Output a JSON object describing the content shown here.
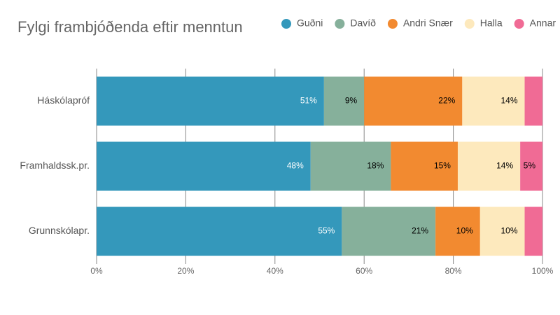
{
  "chart_data": {
    "type": "stacked-barh",
    "title": "Fylgi frambjóðenda eftir menntun",
    "categories": [
      "Háskólapróf",
      "Framhaldssk.pr.",
      "Grunnskólapr."
    ],
    "series": [
      {
        "name": "Guðni",
        "color": "#3498bb",
        "values": [
          51,
          48,
          55
        ],
        "value_labels": [
          "51%",
          "48%",
          "55%"
        ]
      },
      {
        "name": "Davíð",
        "color": "#86b09b",
        "values": [
          9,
          18,
          21
        ],
        "value_labels": [
          "9%",
          "18%",
          "21%"
        ]
      },
      {
        "name": "Andri Snær",
        "color": "#f28a30",
        "values": [
          22,
          15,
          10
        ],
        "value_labels": [
          "22%",
          "15%",
          "10%"
        ]
      },
      {
        "name": "Halla",
        "color": "#fde9bd",
        "values": [
          14,
          14,
          10
        ],
        "value_labels": [
          "14%",
          "14%",
          "10%"
        ]
      },
      {
        "name": "Annar",
        "color": "#f06b95",
        "values": [
          4,
          5,
          4
        ],
        "value_labels": [
          null,
          "5%",
          null
        ]
      }
    ],
    "xlim": [
      0,
      100
    ],
    "xticks": [
      {
        "value": 0,
        "label": "0%"
      },
      {
        "value": 20,
        "label": "20%"
      },
      {
        "value": 40,
        "label": "40%"
      },
      {
        "value": 60,
        "label": "60%"
      },
      {
        "value": 80,
        "label": "80%"
      },
      {
        "value": 100,
        "label": "100%"
      }
    ],
    "grid": true,
    "legend": "top-right"
  }
}
